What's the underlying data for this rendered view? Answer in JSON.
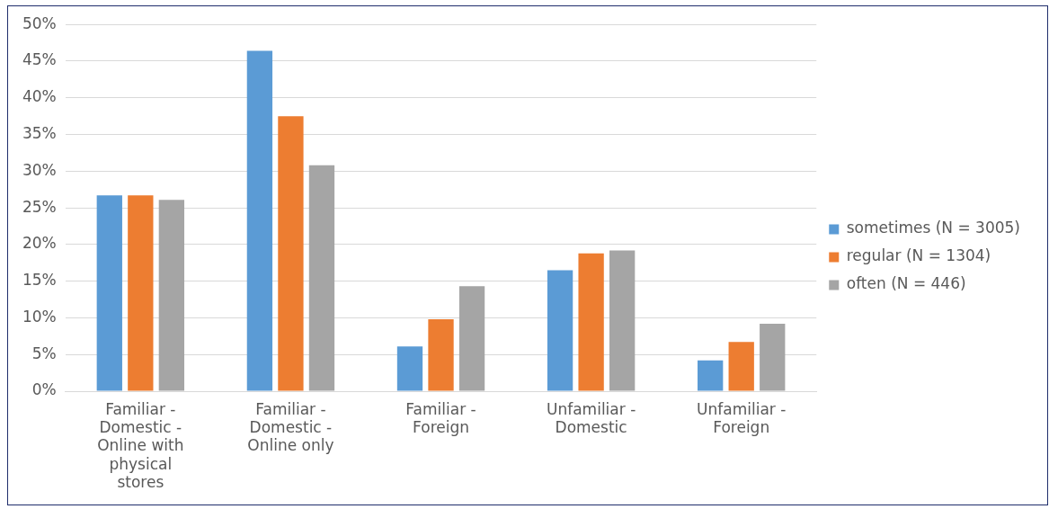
{
  "chart_data": {
    "type": "bar",
    "categories": [
      "Familiar - Domestic - Online with physical stores",
      "Familiar - Domestic - Online only",
      "Familiar - Foreign",
      "Unfamiliar - Domestic",
      "Unfamiliar - Foreign"
    ],
    "series": [
      {
        "name": "sometimes (N = 3005)",
        "color": "#5b9bd5",
        "values": [
          26.7,
          46.4,
          6.1,
          16.5,
          4.2
        ]
      },
      {
        "name": "regular (N = 1304)",
        "color": "#ed7d31",
        "values": [
          26.7,
          37.5,
          9.8,
          18.8,
          6.7
        ]
      },
      {
        "name": "often (N = 446)",
        "color": "#a5a5a5",
        "values": [
          26.1,
          30.8,
          14.3,
          19.2,
          9.2
        ]
      }
    ],
    "ylim": [
      0,
      50
    ],
    "yticks": [
      {
        "value": 0,
        "label": "0%"
      },
      {
        "value": 5,
        "label": "5%"
      },
      {
        "value": 10,
        "label": "10%"
      },
      {
        "value": 15,
        "label": "15%"
      },
      {
        "value": 20,
        "label": "20%"
      },
      {
        "value": 25,
        "label": "25%"
      },
      {
        "value": 30,
        "label": "30%"
      },
      {
        "value": 35,
        "label": "35%"
      },
      {
        "value": 40,
        "label": "40%"
      },
      {
        "value": 45,
        "label": "45%"
      },
      {
        "value": 50,
        "label": "50%"
      }
    ],
    "grid": "y",
    "legend": "right"
  }
}
